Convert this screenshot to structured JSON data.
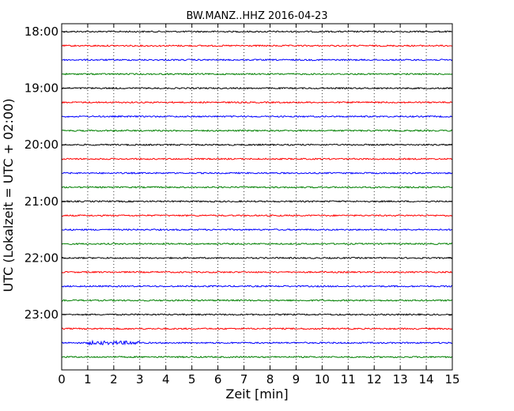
{
  "chart_data": {
    "type": "line",
    "title": "BW.MANZ..HHZ 2016-04-23",
    "xlabel": "Zeit  [min]",
    "ylabel": "UTC (Lokalzeit = UTC + 02:00)",
    "xlim": [
      0,
      15
    ],
    "x_ticks": [
      0,
      1,
      2,
      3,
      4,
      5,
      6,
      7,
      8,
      9,
      10,
      11,
      12,
      13,
      14,
      15
    ],
    "x_tick_labels": [
      "0",
      "1",
      "2",
      "3",
      "4",
      "5",
      "6",
      "7",
      "8",
      "9",
      "10",
      "11",
      "12",
      "13",
      "14",
      "15"
    ],
    "y_tick_labels": [
      "18:00",
      "19:00",
      "20:00",
      "21:00",
      "22:00",
      "23:00"
    ],
    "vertical_grid": "dotted",
    "trace_colors": [
      "#000000",
      "#ff0000",
      "#0000ff",
      "#008000"
    ],
    "traces": [
      {
        "start": "18:00",
        "color": "#000000"
      },
      {
        "start": "18:15",
        "color": "#ff0000"
      },
      {
        "start": "18:30",
        "color": "#0000ff"
      },
      {
        "start": "18:45",
        "color": "#008000"
      },
      {
        "start": "19:00",
        "color": "#000000"
      },
      {
        "start": "19:15",
        "color": "#ff0000"
      },
      {
        "start": "19:30",
        "color": "#0000ff"
      },
      {
        "start": "19:45",
        "color": "#008000"
      },
      {
        "start": "20:00",
        "color": "#000000"
      },
      {
        "start": "20:15",
        "color": "#ff0000"
      },
      {
        "start": "20:30",
        "color": "#0000ff"
      },
      {
        "start": "20:45",
        "color": "#008000"
      },
      {
        "start": "21:00",
        "color": "#000000"
      },
      {
        "start": "21:15",
        "color": "#ff0000"
      },
      {
        "start": "21:30",
        "color": "#0000ff"
      },
      {
        "start": "21:45",
        "color": "#008000"
      },
      {
        "start": "22:00",
        "color": "#000000"
      },
      {
        "start": "22:15",
        "color": "#ff0000"
      },
      {
        "start": "22:30",
        "color": "#0000ff"
      },
      {
        "start": "22:45",
        "color": "#008000"
      },
      {
        "start": "23:00",
        "color": "#000000"
      },
      {
        "start": "23:15",
        "color": "#ff0000"
      },
      {
        "start": "23:30",
        "color": "#0000ff"
      },
      {
        "start": "23:45",
        "color": "#008000"
      }
    ],
    "events": [
      {
        "trace_start": "23:30",
        "x_start_min": 1.0,
        "x_end_min": 3.0
      }
    ]
  }
}
